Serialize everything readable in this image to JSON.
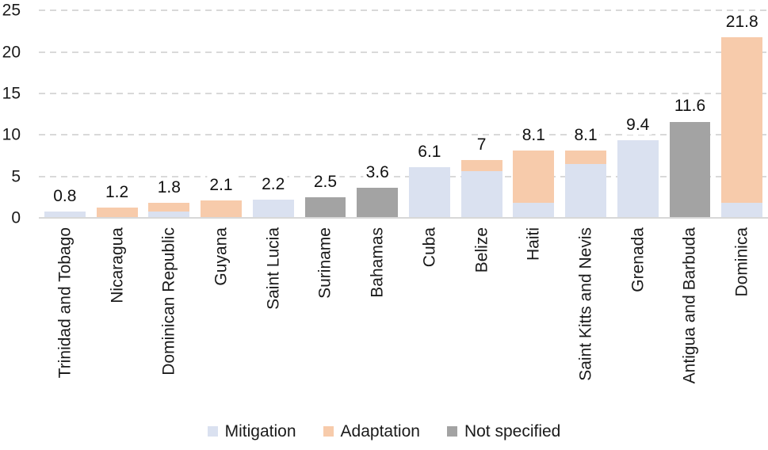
{
  "chart_data": {
    "type": "bar",
    "stacked": true,
    "title": "",
    "xlabel": "",
    "ylabel": "",
    "ylim": [
      0,
      25
    ],
    "yticks": [
      0,
      5,
      10,
      15,
      20,
      25
    ],
    "grid": "horizontal-dashed",
    "legend_position": "bottom-center",
    "categories": [
      "Trinidad and Tobago",
      "Nicaragua",
      "Dominican Republic",
      "Guyana",
      "Saint Lucia",
      "Suriname",
      "Bahamas",
      "Cuba",
      "Belize",
      "Haiti",
      "Saint Kitts and Nevis",
      "Grenada",
      "Antigua and Barbuda",
      "Dominica"
    ],
    "series": [
      {
        "name": "Mitigation",
        "color": "#dae1f0",
        "values": [
          0.8,
          0,
          0.8,
          0,
          2.2,
          0,
          0,
          6.1,
          5.6,
          1.8,
          6.5,
          9.4,
          0,
          1.8
        ]
      },
      {
        "name": "Adaptation",
        "color": "#f7cbab",
        "values": [
          0,
          1.2,
          1.0,
          2.1,
          0,
          0,
          0,
          0,
          1.4,
          6.3,
          1.6,
          0,
          0,
          20.0
        ]
      },
      {
        "name": "Not specified",
        "color": "#a3a3a3",
        "values": [
          0,
          0,
          0,
          0,
          0,
          2.5,
          3.6,
          0,
          0,
          0,
          0,
          0,
          11.6,
          0
        ]
      }
    ],
    "total_labels": [
      "0.8",
      "1.2",
      "1.8",
      "2.1",
      "2.2",
      "2.5",
      "3.6",
      "6.1",
      "7",
      "8.1",
      "8.1",
      "9.4",
      "11.6",
      "21.8"
    ]
  },
  "colors": {
    "grid": "#d9d9d9",
    "axis": "#d8d8d8",
    "text": "#1a1a1a",
    "background": "#ffffff"
  }
}
